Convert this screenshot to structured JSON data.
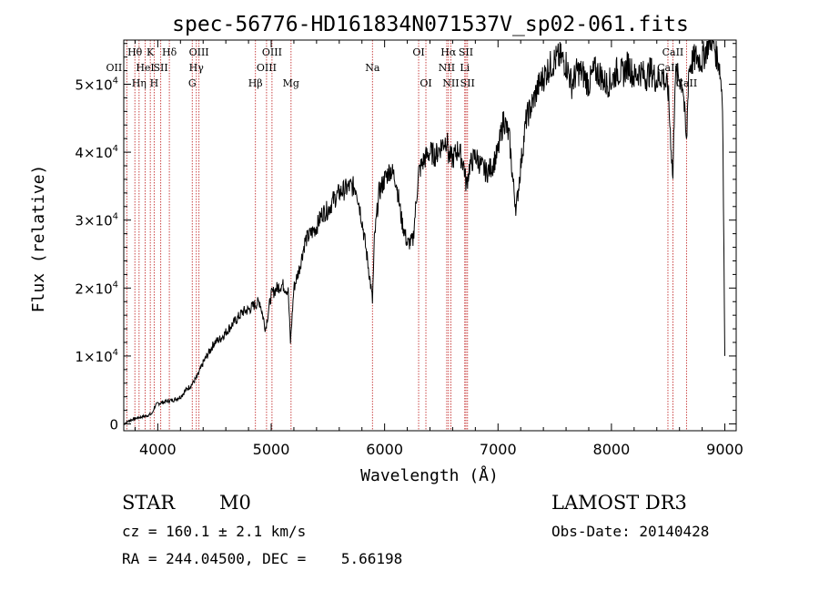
{
  "chart_data": {
    "type": "line",
    "title": "spec-56776-HD161834N071537V_sp02-061.fits",
    "xlabel": "Wavelength (Å)",
    "ylabel": "Flux (relative)",
    "xlim": [
      3700,
      9100
    ],
    "ylim": [
      -1000,
      56500
    ],
    "x_ticks": [
      4000,
      5000,
      6000,
      7000,
      8000,
      9000
    ],
    "x_tick_labels": [
      "4000",
      "5000",
      "6000",
      "7000",
      "8000",
      "9000"
    ],
    "y_ticks": [
      0,
      10000,
      20000,
      30000,
      40000,
      50000
    ],
    "y_tick_labels": [
      {
        "value": 0,
        "mantissa": "0",
        "exp": ""
      },
      {
        "value": 10000,
        "mantissa": "1×10",
        "exp": "4"
      },
      {
        "value": 20000,
        "mantissa": "2×10",
        "exp": "4"
      },
      {
        "value": 30000,
        "mantissa": "3×10",
        "exp": "4"
      },
      {
        "value": 40000,
        "mantissa": "4×10",
        "exp": "4"
      },
      {
        "value": 50000,
        "mantissa": "5×10",
        "exp": "4"
      }
    ],
    "series": [
      {
        "name": "spectrum",
        "x": [
          3700,
          3750,
          3800,
          3850,
          3900,
          3950,
          3970,
          4000,
          4050,
          4100,
          4150,
          4200,
          4250,
          4300,
          4350,
          4400,
          4450,
          4500,
          4550,
          4600,
          4650,
          4700,
          4750,
          4800,
          4850,
          4900,
          4950,
          5000,
          5050,
          5100,
          5150,
          5170,
          5200,
          5250,
          5300,
          5350,
          5400,
          5450,
          5500,
          5550,
          5600,
          5650,
          5700,
          5750,
          5800,
          5850,
          5880,
          5893,
          5910,
          5950,
          6000,
          6050,
          6100,
          6150,
          6200,
          6250,
          6300,
          6350,
          6400,
          6450,
          6500,
          6550,
          6563,
          6600,
          6650,
          6700,
          6720,
          6750,
          6800,
          6850,
          6900,
          6950,
          7000,
          7050,
          7100,
          7130,
          7160,
          7200,
          7250,
          7300,
          7350,
          7400,
          7450,
          7500,
          7550,
          7600,
          7650,
          7700,
          7750,
          7800,
          7850,
          7900,
          7950,
          8000,
          8050,
          8100,
          8150,
          8200,
          8250,
          8300,
          8350,
          8400,
          8450,
          8500,
          8542,
          8560,
          8600,
          8630,
          8662,
          8680,
          8700,
          8750,
          8800,
          8850,
          8880,
          8900,
          8950,
          8980,
          9000
        ],
        "y": [
          0,
          500,
          800,
          1000,
          1200,
          1500,
          2500,
          3000,
          3200,
          3400,
          3600,
          4000,
          5000,
          5800,
          7000,
          9000,
          10500,
          12000,
          12500,
          13500,
          14500,
          15500,
          16500,
          16800,
          17500,
          18000,
          14000,
          19000,
          20000,
          20500,
          19500,
          12000,
          20000,
          23000,
          27000,
          28000,
          29000,
          31000,
          31500,
          33000,
          34000,
          34500,
          35000,
          34800,
          30000,
          24000,
          20000,
          18000,
          27000,
          34000,
          36000,
          37500,
          36000,
          30000,
          26500,
          27000,
          37000,
          39000,
          40000,
          39500,
          41000,
          42000,
          39500,
          39000,
          40500,
          38000,
          35000,
          38000,
          39500,
          38000,
          37000,
          38000,
          40000,
          45000,
          42000,
          36000,
          31500,
          38000,
          45000,
          47000,
          49500,
          51000,
          52500,
          53500,
          54000,
          53000,
          50000,
          52000,
          51500,
          50000,
          52000,
          51500,
          50000,
          50500,
          52000,
          51500,
          53000,
          51000,
          52000,
          51000,
          52000,
          50500,
          51500,
          49000,
          36000,
          51000,
          51000,
          50000,
          41000,
          52000,
          53000,
          54000,
          53500,
          56000,
          57000,
          56000,
          53000,
          48000,
          10000
        ]
      }
    ],
    "lines": [
      {
        "x": 3727,
        "label": "OII",
        "row": 1,
        "dx": -14
      },
      {
        "x": 3798,
        "label": "Hθ",
        "row": 0,
        "dx": 0
      },
      {
        "x": 3835,
        "label": "Hη",
        "row": 2,
        "dx": 0
      },
      {
        "x": 3889,
        "label": "HeI",
        "row": 1,
        "dx": 0
      },
      {
        "x": 3934,
        "label": "K",
        "row": 0,
        "dx": 0
      },
      {
        "x": 3968,
        "label": "H",
        "row": 2,
        "dx": 0
      },
      {
        "x": 4026,
        "label": "SII",
        "row": 1,
        "dx": 0
      },
      {
        "x": 4102,
        "label": "Hδ",
        "row": 0,
        "dx": 0
      },
      {
        "x": 4304,
        "label": "G",
        "row": 2,
        "dx": 0
      },
      {
        "x": 4340,
        "label": "Hγ",
        "row": 1,
        "dx": 0
      },
      {
        "x": 4363,
        "label": "OIII",
        "row": 0,
        "dx": 0
      },
      {
        "x": 4861,
        "label": "Hβ",
        "row": 2,
        "dx": 0
      },
      {
        "x": 4959,
        "label": "OIII",
        "row": 1,
        "dx": 0
      },
      {
        "x": 5007,
        "label": "OIII",
        "row": 0,
        "dx": 0
      },
      {
        "x": 5175,
        "label": "Mg",
        "row": 2,
        "dx": 0
      },
      {
        "x": 5893,
        "label": "Na",
        "row": 1,
        "dx": 0
      },
      {
        "x": 6300,
        "label": "OI",
        "row": 0,
        "dx": 0
      },
      {
        "x": 6364,
        "label": "OI",
        "row": 2,
        "dx": 0
      },
      {
        "x": 6548,
        "label": "NII",
        "row": 1,
        "dx": 0
      },
      {
        "x": 6563,
        "label": "Hα",
        "row": 0,
        "dx": 0
      },
      {
        "x": 6584,
        "label": "NII",
        "row": 2,
        "dx": 0
      },
      {
        "x": 6707,
        "label": "Li",
        "row": 1,
        "dx": 0
      },
      {
        "x": 6717,
        "label": "SII",
        "row": 0,
        "dx": 0
      },
      {
        "x": 6731,
        "label": "SII",
        "row": 2,
        "dx": 0
      },
      {
        "x": 8498,
        "label": "CaII",
        "row": 1,
        "dx": 0
      },
      {
        "x": 8542,
        "label": "CaII",
        "row": 0,
        "dx": 0
      },
      {
        "x": 8662,
        "label": "CaII",
        "row": 2,
        "dx": 0
      }
    ]
  },
  "info": {
    "object_type": "STAR",
    "subclass": "M0",
    "survey": "LAMOST DR3",
    "cz": "cz = 160.1 ± 2.1 km/s",
    "obs_date": "Obs-Date: 20140428",
    "coords": "RA = 244.04500, DEC =    5.66198"
  },
  "colors": {
    "line_marker": "#c43030",
    "spectrum": "#000000",
    "axes": "#000000"
  }
}
